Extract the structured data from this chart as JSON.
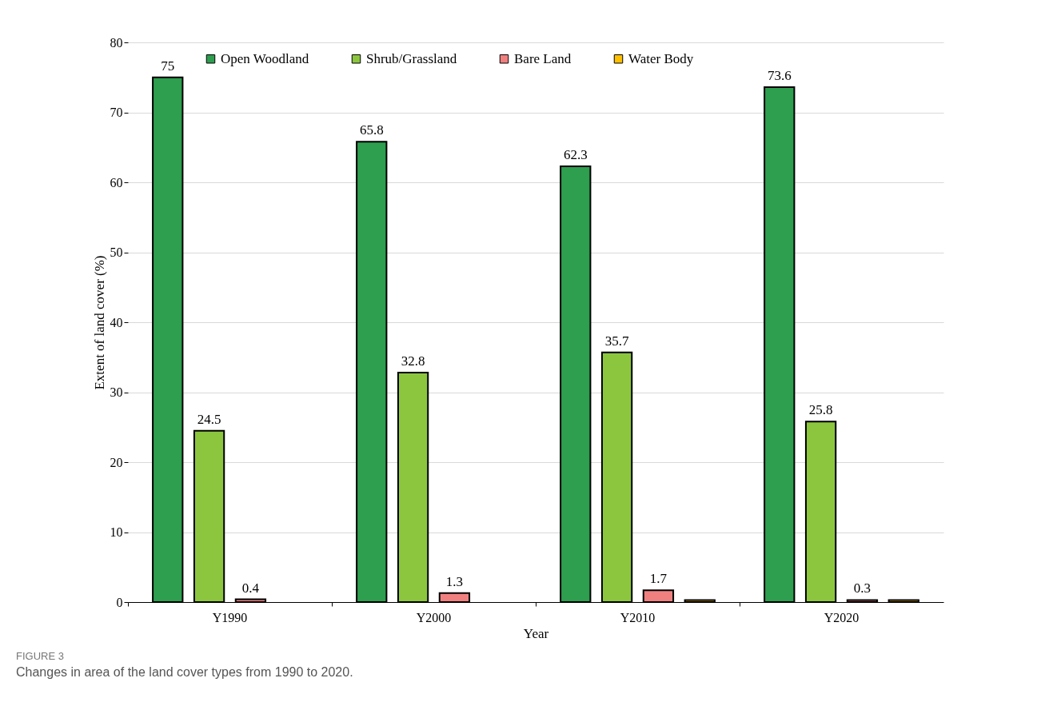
{
  "chart_data": {
    "type": "bar",
    "xlabel": "Year",
    "ylabel": "Extent of land cover (%)",
    "categories": [
      "Y1990",
      "Y2000",
      "Y2010",
      "Y2020"
    ],
    "series": [
      {
        "name": "Open Woodland",
        "color": "#2e9e4f",
        "values": [
          75,
          65.8,
          62.3,
          73.6
        ],
        "value_labels": [
          "75",
          "65.8",
          "62.3",
          "73.6"
        ]
      },
      {
        "name": "Shrub/Grassland",
        "color": "#8cc63f",
        "values": [
          24.5,
          32.8,
          35.7,
          25.8
        ],
        "value_labels": [
          "24.5",
          "32.8",
          "35.7",
          "25.8"
        ]
      },
      {
        "name": "Bare Land",
        "color": "#f08080",
        "values": [
          0.4,
          1.3,
          1.7,
          0.3
        ],
        "value_labels": [
          "0.4",
          "1.3",
          "1.7",
          "0.3"
        ]
      },
      {
        "name": "Water Body",
        "color": "#ffc000",
        "values": [
          null,
          null,
          0.3,
          0.3
        ]
      }
    ],
    "ylim": [
      0,
      80
    ],
    "yticks": [
      0,
      10,
      20,
      30,
      40,
      50,
      60,
      70,
      80
    ],
    "grid": "y",
    "legend": "top",
    "annotations": [
      "FIGURE 3",
      "Changes in area of the land cover types from 1990 to 2020."
    ]
  }
}
